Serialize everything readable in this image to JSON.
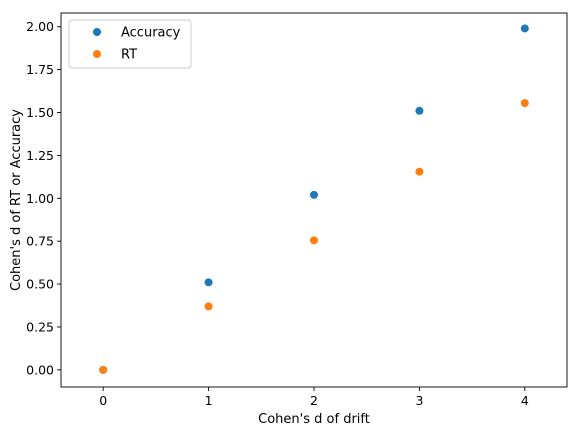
{
  "chart_data": {
    "type": "scatter",
    "title": "",
    "xlabel": "Cohen's d of drift",
    "ylabel": "Cohen's d of RT or Accuracy",
    "xlim": [
      -0.4,
      4.4
    ],
    "ylim": [
      -0.1,
      2.08
    ],
    "xticks": [
      0,
      1,
      2,
      3,
      4
    ],
    "xtick_labels": [
      "0",
      "1",
      "2",
      "3",
      "4"
    ],
    "yticks": [
      0.0,
      0.25,
      0.5,
      0.75,
      1.0,
      1.25,
      1.5,
      1.75,
      2.0
    ],
    "ytick_labels": [
      "0.00",
      "0.25",
      "0.50",
      "0.75",
      "1.00",
      "1.25",
      "1.50",
      "1.75",
      "2.00"
    ],
    "grid": false,
    "legend_position": "top-left",
    "series": [
      {
        "name": "Accuracy",
        "color": "#1f77b4",
        "x": [
          0,
          1,
          2,
          3,
          4
        ],
        "y": [
          0.0,
          0.51,
          1.02,
          1.51,
          1.99
        ]
      },
      {
        "name": "RT",
        "color": "#ff7f0e",
        "x": [
          0,
          1,
          2,
          3,
          4
        ],
        "y": [
          0.0,
          0.37,
          0.755,
          1.155,
          1.555
        ]
      }
    ]
  }
}
